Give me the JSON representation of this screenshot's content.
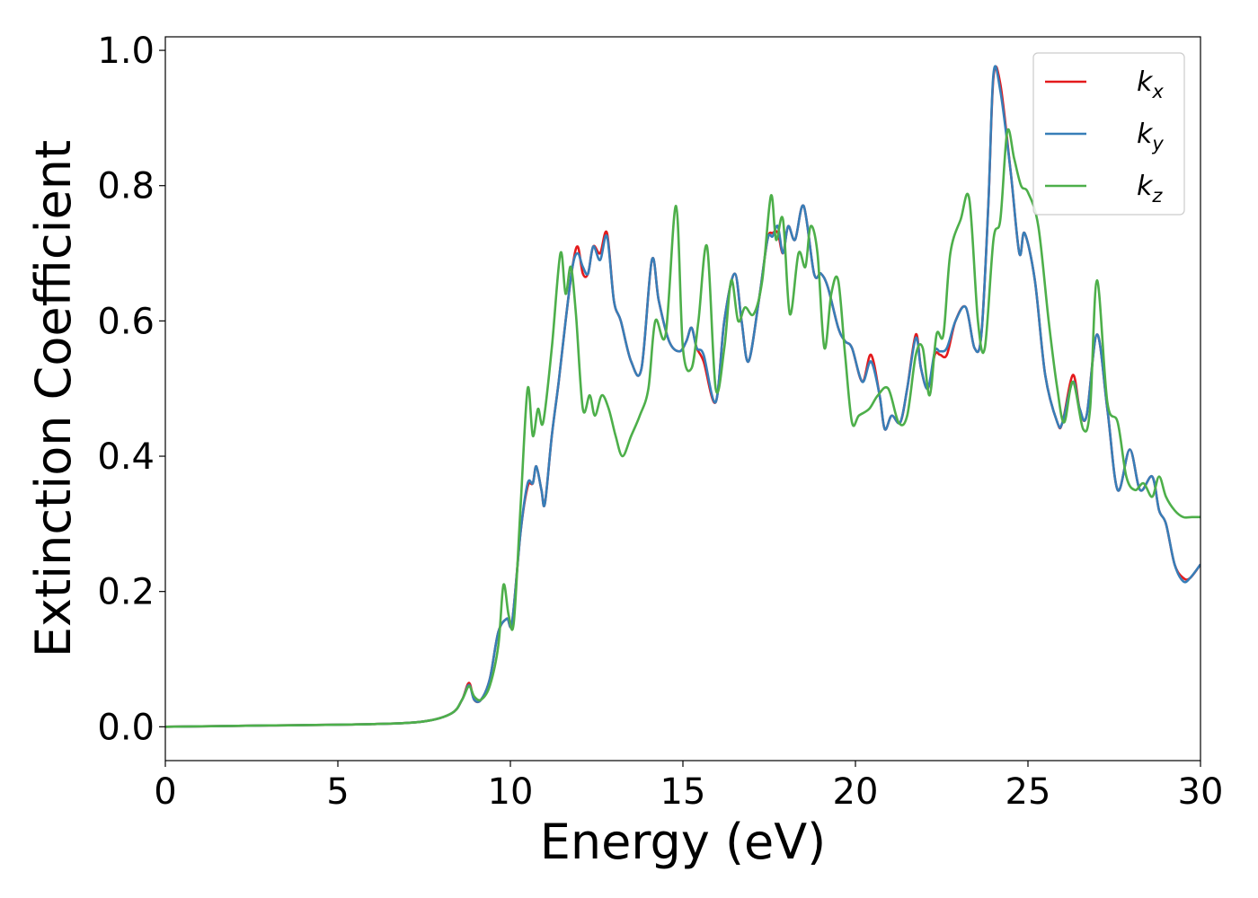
{
  "chart_data": {
    "type": "line",
    "title": "",
    "xlabel": "Energy (eV)",
    "ylabel": "Extinction Coefficient",
    "xlim": [
      0,
      30
    ],
    "ylim": [
      -0.05,
      1.02
    ],
    "xticks": [
      0,
      5,
      10,
      15,
      20,
      25,
      30
    ],
    "yticks": [
      0.0,
      0.2,
      0.4,
      0.6,
      0.8,
      1.0
    ],
    "xtick_labels": [
      "0",
      "5",
      "10",
      "15",
      "20",
      "25",
      "30"
    ],
    "ytick_labels": [
      "0.0",
      "0.2",
      "0.4",
      "0.6",
      "0.8",
      "1.0"
    ],
    "grid": false,
    "legend_position": "top-right",
    "series": [
      {
        "name": "k_x",
        "label_main": "k",
        "label_sub": "x",
        "color": "#e41a1c",
        "x": [
          0,
          3,
          6,
          7.5,
          8.3,
          8.6,
          8.8,
          8.95,
          9.15,
          9.4,
          9.65,
          9.9,
          10.05,
          10.3,
          10.5,
          10.65,
          10.75,
          10.9,
          11.0,
          11.2,
          11.4,
          11.6,
          11.8,
          11.95,
          12.1,
          12.25,
          12.4,
          12.6,
          12.8,
          13.0,
          13.2,
          13.5,
          13.8,
          14.1,
          14.3,
          14.6,
          14.9,
          15.1,
          15.25,
          15.4,
          15.6,
          15.95,
          16.2,
          16.5,
          16.7,
          16.9,
          17.2,
          17.45,
          17.6,
          17.75,
          17.9,
          18.05,
          18.25,
          18.5,
          18.8,
          19.0,
          19.2,
          19.5,
          19.7,
          19.9,
          20.2,
          20.45,
          20.7,
          20.85,
          21.05,
          21.3,
          21.5,
          21.75,
          21.9,
          22.1,
          22.3,
          22.45,
          22.65,
          22.9,
          23.2,
          23.45,
          23.65,
          23.85,
          24.0,
          24.2,
          24.5,
          24.75,
          24.9,
          25.2,
          25.5,
          25.85,
          26.0,
          26.3,
          26.5,
          26.7,
          27.0,
          27.3,
          27.6,
          27.95,
          28.25,
          28.6,
          28.8,
          29.0,
          29.25,
          29.5,
          29.7,
          30.0
        ],
        "y": [
          0.0,
          0.002,
          0.004,
          0.008,
          0.02,
          0.04,
          0.065,
          0.04,
          0.04,
          0.07,
          0.14,
          0.16,
          0.155,
          0.29,
          0.355,
          0.36,
          0.385,
          0.35,
          0.33,
          0.43,
          0.51,
          0.6,
          0.68,
          0.71,
          0.67,
          0.67,
          0.71,
          0.7,
          0.73,
          0.63,
          0.6,
          0.54,
          0.53,
          0.69,
          0.63,
          0.57,
          0.555,
          0.57,
          0.59,
          0.56,
          0.54,
          0.48,
          0.6,
          0.67,
          0.6,
          0.54,
          0.63,
          0.72,
          0.73,
          0.73,
          0.7,
          0.74,
          0.72,
          0.77,
          0.67,
          0.67,
          0.65,
          0.59,
          0.57,
          0.56,
          0.51,
          0.55,
          0.49,
          0.44,
          0.46,
          0.45,
          0.5,
          0.58,
          0.53,
          0.5,
          0.55,
          0.55,
          0.55,
          0.6,
          0.62,
          0.56,
          0.58,
          0.77,
          0.96,
          0.95,
          0.82,
          0.7,
          0.73,
          0.66,
          0.52,
          0.45,
          0.45,
          0.52,
          0.47,
          0.46,
          0.58,
          0.47,
          0.35,
          0.41,
          0.35,
          0.37,
          0.32,
          0.3,
          0.24,
          0.22,
          0.22,
          0.24
        ]
      },
      {
        "name": "k_y",
        "label_main": "k",
        "label_sub": "y",
        "color": "#377eb8",
        "x": [
          0,
          3,
          6,
          7.5,
          8.3,
          8.6,
          8.8,
          8.95,
          9.15,
          9.4,
          9.65,
          9.9,
          10.05,
          10.3,
          10.5,
          10.65,
          10.75,
          10.9,
          11.0,
          11.2,
          11.4,
          11.6,
          11.8,
          11.95,
          12.1,
          12.25,
          12.4,
          12.6,
          12.8,
          13.0,
          13.2,
          13.5,
          13.8,
          14.1,
          14.3,
          14.6,
          14.9,
          15.1,
          15.25,
          15.4,
          15.6,
          15.95,
          16.2,
          16.5,
          16.7,
          16.9,
          17.2,
          17.45,
          17.6,
          17.75,
          17.9,
          18.05,
          18.25,
          18.5,
          18.8,
          19.0,
          19.2,
          19.5,
          19.7,
          19.9,
          20.2,
          20.45,
          20.7,
          20.85,
          21.05,
          21.3,
          21.5,
          21.75,
          21.9,
          22.1,
          22.3,
          22.45,
          22.65,
          22.9,
          23.2,
          23.45,
          23.65,
          23.85,
          24.0,
          24.2,
          24.5,
          24.75,
          24.9,
          25.2,
          25.5,
          25.85,
          26.0,
          26.3,
          26.5,
          26.7,
          27.0,
          27.3,
          27.6,
          27.95,
          28.25,
          28.6,
          28.8,
          29.0,
          29.25,
          29.5,
          29.7,
          30.0
        ],
        "y": [
          0.0,
          0.002,
          0.004,
          0.008,
          0.02,
          0.04,
          0.062,
          0.04,
          0.04,
          0.07,
          0.14,
          0.16,
          0.155,
          0.29,
          0.36,
          0.36,
          0.385,
          0.35,
          0.33,
          0.43,
          0.51,
          0.6,
          0.68,
          0.7,
          0.68,
          0.67,
          0.71,
          0.69,
          0.725,
          0.63,
          0.6,
          0.54,
          0.53,
          0.69,
          0.63,
          0.57,
          0.555,
          0.57,
          0.59,
          0.56,
          0.55,
          0.48,
          0.6,
          0.67,
          0.6,
          0.54,
          0.63,
          0.72,
          0.725,
          0.74,
          0.7,
          0.74,
          0.72,
          0.77,
          0.67,
          0.67,
          0.65,
          0.59,
          0.57,
          0.56,
          0.51,
          0.54,
          0.49,
          0.44,
          0.46,
          0.45,
          0.5,
          0.575,
          0.53,
          0.5,
          0.555,
          0.555,
          0.56,
          0.6,
          0.62,
          0.56,
          0.58,
          0.77,
          0.965,
          0.94,
          0.82,
          0.7,
          0.73,
          0.66,
          0.52,
          0.45,
          0.45,
          0.51,
          0.47,
          0.46,
          0.58,
          0.47,
          0.35,
          0.41,
          0.35,
          0.37,
          0.32,
          0.3,
          0.24,
          0.215,
          0.22,
          0.24
        ]
      },
      {
        "name": "k_z",
        "label_main": "k",
        "label_sub": "z",
        "color": "#4daf4a",
        "x": [
          0,
          3,
          6,
          7.5,
          8.3,
          8.6,
          8.8,
          8.95,
          9.15,
          9.4,
          9.65,
          9.8,
          9.95,
          10.1,
          10.3,
          10.5,
          10.65,
          10.8,
          10.95,
          11.2,
          11.45,
          11.6,
          11.75,
          11.9,
          12.1,
          12.3,
          12.45,
          12.65,
          12.85,
          13.05,
          13.25,
          13.5,
          13.75,
          14.0,
          14.2,
          14.5,
          14.8,
          15.0,
          15.25,
          15.45,
          15.7,
          15.95,
          16.2,
          16.4,
          16.6,
          16.8,
          17.05,
          17.3,
          17.55,
          17.7,
          17.9,
          18.1,
          18.35,
          18.55,
          18.7,
          18.9,
          19.1,
          19.3,
          19.5,
          19.7,
          19.9,
          20.1,
          20.4,
          20.65,
          20.95,
          21.25,
          21.5,
          21.75,
          21.95,
          22.15,
          22.35,
          22.55,
          22.75,
          23.05,
          23.3,
          23.55,
          23.75,
          24.0,
          24.2,
          24.4,
          24.6,
          24.8,
          25.0,
          25.3,
          25.6,
          25.85,
          26.05,
          26.3,
          26.6,
          26.8,
          27.0,
          27.3,
          27.6,
          27.85,
          28.1,
          28.35,
          28.6,
          28.8,
          29.0,
          29.25,
          29.5,
          29.75,
          30.0
        ],
        "y": [
          0.0,
          0.002,
          0.004,
          0.008,
          0.02,
          0.04,
          0.06,
          0.045,
          0.04,
          0.06,
          0.12,
          0.21,
          0.165,
          0.155,
          0.33,
          0.5,
          0.43,
          0.47,
          0.45,
          0.56,
          0.7,
          0.64,
          0.68,
          0.61,
          0.47,
          0.49,
          0.46,
          0.49,
          0.47,
          0.43,
          0.4,
          0.43,
          0.46,
          0.5,
          0.6,
          0.58,
          0.77,
          0.56,
          0.53,
          0.6,
          0.71,
          0.5,
          0.56,
          0.66,
          0.6,
          0.62,
          0.61,
          0.66,
          0.785,
          0.72,
          0.75,
          0.61,
          0.7,
          0.68,
          0.74,
          0.7,
          0.56,
          0.64,
          0.66,
          0.55,
          0.45,
          0.46,
          0.47,
          0.49,
          0.5,
          0.45,
          0.46,
          0.55,
          0.56,
          0.49,
          0.58,
          0.58,
          0.7,
          0.75,
          0.78,
          0.6,
          0.56,
          0.72,
          0.75,
          0.88,
          0.84,
          0.8,
          0.79,
          0.74,
          0.6,
          0.5,
          0.45,
          0.51,
          0.44,
          0.47,
          0.66,
          0.48,
          0.45,
          0.37,
          0.35,
          0.36,
          0.34,
          0.37,
          0.34,
          0.32,
          0.31,
          0.31,
          0.31
        ]
      }
    ]
  }
}
